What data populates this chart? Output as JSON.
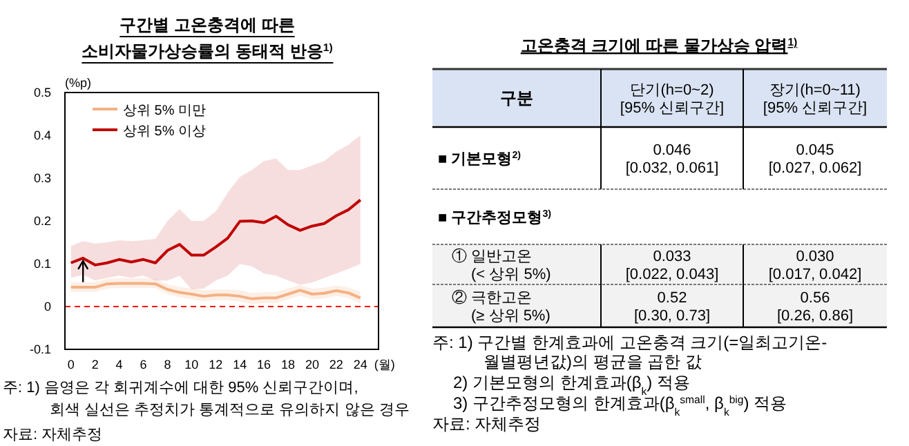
{
  "chart_data": [
    {
      "type": "line",
      "title": "구간별 고온충격에 따른\n소비자물가상승률의 동태적 반응$^{1)}$",
      "ylabel": "(%p)",
      "xlabel": "(월)",
      "legend": "top left",
      "x": [
        0,
        1,
        2,
        3,
        4,
        5,
        6,
        7,
        8,
        9,
        10,
        11,
        12,
        13,
        14,
        15,
        16,
        17,
        18,
        19,
        20,
        21,
        22,
        23,
        24
      ],
      "series": [
        {
          "name": "상위 5% 미만",
          "color": "#f4b183",
          "values": [
            0.045,
            0.045,
            0.045,
            0.053,
            0.054,
            0.054,
            0.054,
            0.053,
            0.04,
            0.033,
            0.029,
            0.024,
            0.027,
            0.027,
            0.024,
            0.018,
            0.02,
            0.02,
            0.029,
            0.038,
            0.029,
            0.031,
            0.037,
            0.032,
            0.02
          ],
          "lower": [
            0.034,
            0.034,
            0.034,
            0.042,
            0.043,
            0.043,
            0.043,
            0.043,
            0.029,
            0.022,
            0.017,
            0.012,
            0.015,
            0.015,
            0.012,
            0.006,
            0.008,
            0.008,
            0.017,
            0.026,
            0.017,
            0.019,
            0.025,
            0.02,
            0.007
          ],
          "upper": [
            0.057,
            0.057,
            0.057,
            0.065,
            0.066,
            0.066,
            0.066,
            0.064,
            0.052,
            0.046,
            0.042,
            0.038,
            0.04,
            0.04,
            0.038,
            0.032,
            0.034,
            0.034,
            0.042,
            0.05,
            0.042,
            0.044,
            0.049,
            0.045,
            0.034
          ]
        },
        {
          "name": "상위 5% 이상",
          "color": "#c00000",
          "values": [
            0.102,
            0.113,
            0.097,
            0.102,
            0.11,
            0.104,
            0.11,
            0.102,
            0.131,
            0.145,
            0.12,
            0.12,
            0.139,
            0.16,
            0.199,
            0.2,
            0.196,
            0.211,
            0.191,
            0.178,
            0.188,
            0.194,
            0.212,
            0.226,
            0.249
          ],
          "lower": [
            0.067,
            0.074,
            0.061,
            0.067,
            0.072,
            0.067,
            0.072,
            0.061,
            0.061,
            0.072,
            0.04,
            0.042,
            0.061,
            0.072,
            0.099,
            0.094,
            0.077,
            0.072,
            0.061,
            0.051,
            0.056,
            0.067,
            0.077,
            0.088,
            0.099
          ],
          "upper": [
            0.142,
            0.153,
            0.147,
            0.15,
            0.155,
            0.153,
            0.155,
            0.158,
            0.2,
            0.228,
            0.2,
            0.2,
            0.222,
            0.266,
            0.303,
            0.319,
            0.34,
            0.346,
            0.319,
            0.319,
            0.33,
            0.34,
            0.362,
            0.378,
            0.4
          ]
        }
      ],
      "xlim": [
        -0.5,
        25.5
      ],
      "xticks": [
        0,
        2,
        4,
        6,
        8,
        10,
        12,
        14,
        16,
        18,
        20,
        22,
        24
      ],
      "ylim": [
        -0.1,
        0.5
      ],
      "yticks": [
        -0.1,
        0,
        0.1,
        0.2,
        0.3,
        0.4,
        0.5
      ],
      "ref_lines": [
        {
          "axis": "y",
          "value": 0,
          "color": "#ff0000",
          "line_style": "dashed"
        }
      ],
      "annotations": [
        "주: 1) 음영은 각 회귀계수에 대한 95% 신뢰구간이며,\n회색 실선은 추정치가 통계적으로 유의하지 않은 경우",
        "자료: 자체추정"
      ]
    },
    {
      "type": "other",
      "title": "고온충격 크기에 따른 물가상승 압력$^{1)}$",
      "annotations": [
        "구분",
        "단기(h=0~2)\n[95% 신뢰구간]",
        "장기(h=0~11)\n[95% 신뢰구간]",
        "■ 기본모형$^{2)}$",
        "0.046\n[0.032, 0.061]",
        "0.045\n[0.027, 0.062]",
        "■ 구간추정모형$^{3)}$",
        "① 일반고온\n(< 상위 5%)",
        "0.033\n[0.022, 0.043]",
        "0.030\n[0.017, 0.042]",
        "② 극한고온\n(≥ 상위 5%)",
        "0.52\n[0.30, 0.73]",
        "0.56\n[0.26, 0.86]",
        "주: 1) 구간별 한계효과에 고온충격 크기(=일최고기온-\n월별평년값)의 평균을 곱한 값",
        "2) 기본모형의 한계효과(β$_{k}$) 적용",
        "3) 구간추정모형의 한계효과(β$_{k}$$^{small}$, β$_{k}$$^{big}$) 적용",
        "자료: 자체추정"
      ]
    }
  ]
}
